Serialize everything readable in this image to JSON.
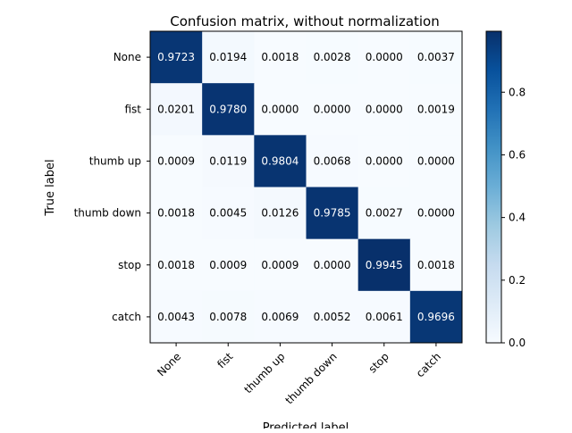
{
  "chart_data": {
    "type": "heatmap",
    "title": "Confusion matrix, without normalization",
    "xlabel": "Predicted label",
    "ylabel": "True label",
    "x_categories": [
      "None",
      "fist",
      "thumb up",
      "thumb down",
      "stop",
      "catch"
    ],
    "y_categories": [
      "None",
      "fist",
      "thumb up",
      "thumb down",
      "stop",
      "catch"
    ],
    "values": [
      [
        "0.9723",
        "0.0194",
        "0.0018",
        "0.0028",
        "0.0000",
        "0.0037"
      ],
      [
        "0.0201",
        "0.9780",
        "0.0000",
        "0.0000",
        "0.0000",
        "0.0019"
      ],
      [
        "0.0009",
        "0.0119",
        "0.9804",
        "0.0068",
        "0.0000",
        "0.0000"
      ],
      [
        "0.0018",
        "0.0045",
        "0.0126",
        "0.9785",
        "0.0027",
        "0.0000"
      ],
      [
        "0.0018",
        "0.0009",
        "0.0009",
        "0.0000",
        "0.9945",
        "0.0018"
      ],
      [
        "0.0043",
        "0.0078",
        "0.0069",
        "0.0052",
        "0.0061",
        "0.9696"
      ]
    ],
    "colormap": "Blues",
    "colorbar": {
      "range": [
        0,
        0.9945
      ],
      "ticks": [
        "0.0",
        "0.2",
        "0.4",
        "0.6",
        "0.8"
      ]
    },
    "grid": false,
    "text_color_dark": "#000000",
    "text_color_light": "#ffffff"
  }
}
